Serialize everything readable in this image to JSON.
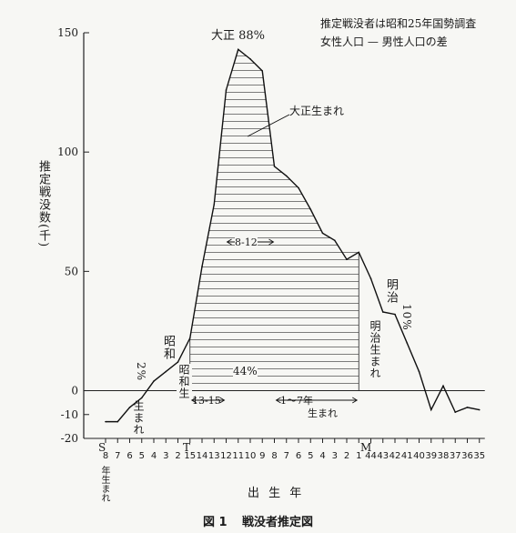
{
  "notes": {
    "source_line1": "推定戦没者は昭和25年国勢調査",
    "source_line2": "女性人口 — 男性人口の差"
  },
  "axis": {
    "ylabel": "推定戦没数(千)",
    "xlabel": "出 生 年",
    "era_showa": "S",
    "era_taisho": "T",
    "era_meiji": "M",
    "showa_born_tick": "年生まれ"
  },
  "annotations": {
    "taisho_peak": "大正 88%",
    "taisho_born": "大正生まれ",
    "range_8_12": "8-12",
    "range_13_15": "13-15",
    "range_1_7": "1〜7年",
    "born_suffix": "生まれ",
    "taisho_44": "44%",
    "showa_label": "昭和",
    "showa_pct": "2%",
    "showa_born": "生まれ",
    "showa_vert": "昭和生",
    "meiji_label": "明治",
    "meiji_pct": "10%",
    "meiji_born": "明治生まれ"
  },
  "caption": {
    "fig": "図 1",
    "title": "戦没者推定図"
  },
  "chart_data": {
    "type": "area",
    "ylim": [
      -20,
      150
    ],
    "yticks": [
      150,
      100,
      50,
      0,
      -10,
      -20
    ],
    "grid": false,
    "categories": [
      "8",
      "7",
      "6",
      "5",
      "4",
      "3",
      "2",
      "15",
      "14",
      "13",
      "12",
      "11",
      "10",
      "9",
      "8",
      "7",
      "6",
      "5",
      "4",
      "3",
      "2",
      "1",
      "44",
      "43",
      "42",
      "41",
      "40",
      "39",
      "38",
      "37",
      "36",
      "35"
    ],
    "values": [
      -13,
      -13,
      -7,
      -3,
      4,
      8,
      12,
      22,
      52,
      78,
      126,
      143,
      139,
      134,
      94,
      90,
      85,
      76,
      66,
      63,
      55,
      58,
      47,
      33,
      32,
      20,
      8,
      -8,
      2,
      -9,
      -7,
      -8
    ]
  }
}
